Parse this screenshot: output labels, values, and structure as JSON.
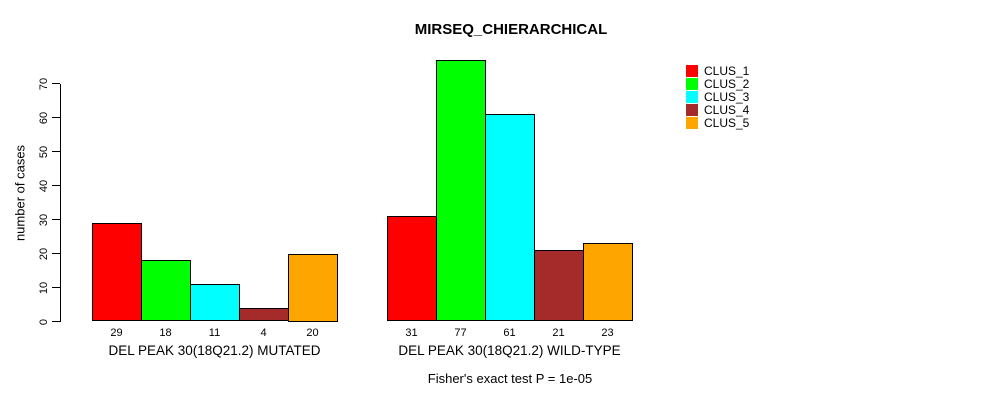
{
  "title": "MIRSEQ_CHIERARCHICAL",
  "footer": "Fisher's exact test P = 1e-05",
  "chart_data": {
    "type": "bar",
    "title": "MIRSEQ_CHIERARCHICAL",
    "xlabel": "",
    "ylabel": "number of cases",
    "ylim": [
      0,
      77
    ],
    "yticks": [
      0,
      10,
      20,
      30,
      40,
      50,
      60,
      70
    ],
    "grid": false,
    "legend_position": "top-right",
    "categories": [
      "DEL PEAK 30(18Q21.2) MUTATED",
      "DEL PEAK 30(18Q21.2) WILD-TYPE"
    ],
    "series": [
      {
        "name": "CLUS_1",
        "color": "#ff0000",
        "values": [
          29,
          31
        ]
      },
      {
        "name": "CLUS_2",
        "color": "#00ff00",
        "values": [
          18,
          77
        ]
      },
      {
        "name": "CLUS_3",
        "color": "#00ffff",
        "values": [
          11,
          61
        ]
      },
      {
        "name": "CLUS_4",
        "color": "#a52a2a",
        "values": [
          4,
          21
        ]
      },
      {
        "name": "CLUS_5",
        "color": "#ffa500",
        "values": [
          20,
          23
        ]
      }
    ],
    "bar_value_labels": [
      [
        29,
        18,
        11,
        4,
        20
      ],
      [
        31,
        77,
        61,
        21,
        23
      ]
    ],
    "annotation": "Fisher's exact test P = 1e-05",
    "bar_border_color": "#000000",
    "background_color": "#ffffff"
  }
}
